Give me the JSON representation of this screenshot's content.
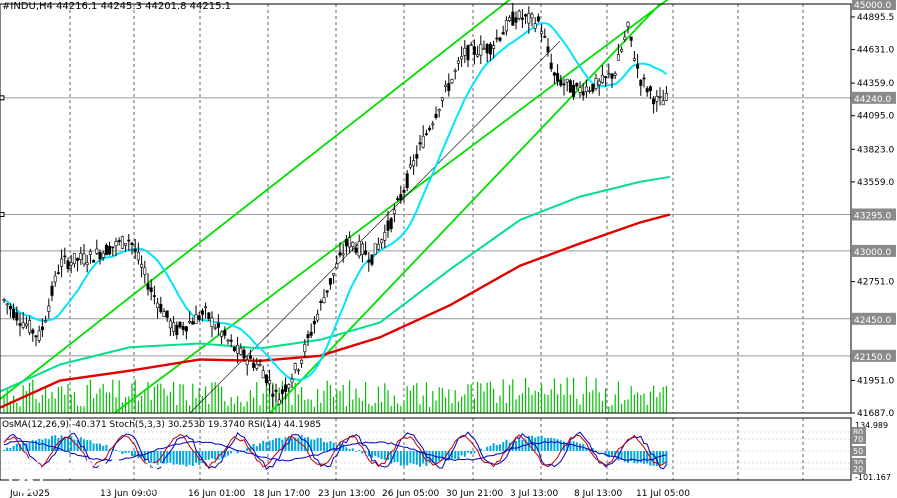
{
  "header": {
    "symbol_line": "#INDU,H4  44216.1 44245.3 44201.8 44215.1"
  },
  "oscillators": {
    "label": "OsMA(12,26,9) -40.371   Stoch(5,3,3) 30.2530 19.3740   RSI(14) 44.1985"
  },
  "price_axis": {
    "labels": [
      "45000.0",
      "44895.5",
      "44631.0",
      "44359.0",
      "44240.0",
      "44095.0",
      "43823.0",
      "43559.0",
      "43295.0",
      "43000.0",
      "42751.0",
      "42450.0",
      "42150.0",
      "41951.0",
      "41687.0"
    ],
    "highlighted": [
      "45000.0",
      "44240.0",
      "43295.0",
      "43000.0",
      "42450.0",
      "42150.0"
    ]
  },
  "osc_axis": {
    "labels": [
      "134.989",
      "80",
      "70",
      "50",
      "30",
      "20",
      "-101.167"
    ],
    "highlighted": [
      "80",
      "70",
      "50",
      "30",
      "20"
    ]
  },
  "time_axis": {
    "labels": [
      "Jun 2025",
      "13 Jun 09:00",
      "16 Jun 01:00",
      "18 Jun 17:00",
      "23 Jun 13:00",
      "26 Jun 05:00",
      "30 Jun 21:00",
      "3 Jul 13:00",
      "8 Jul 13:00",
      "11 Jul 05:00"
    ]
  },
  "logo": {
    "name": "instaforex",
    "tagline": "Instant Forex Trading"
  },
  "colors": {
    "candle": "#000000",
    "ma_fast": "#00e5ff",
    "ma_mid": "#00e08a",
    "ma_slow": "#e00000",
    "channel": "#00e000",
    "volume": "#00c000",
    "osma": "#00a8e0",
    "stoch_main": "#0000c0",
    "stoch_signal": "#c00000"
  }
}
